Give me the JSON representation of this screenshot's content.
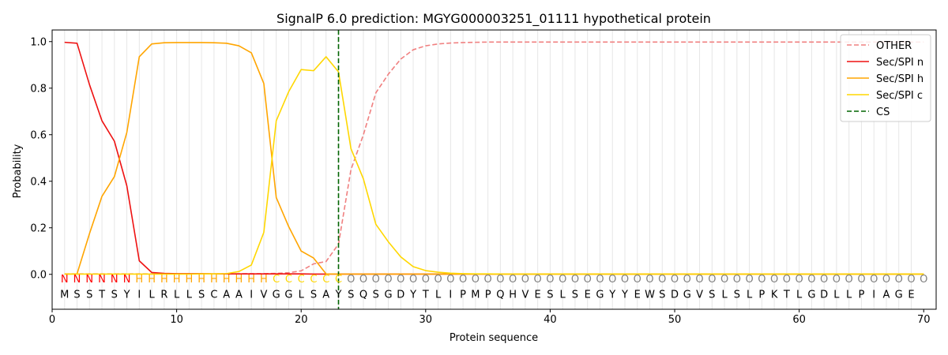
{
  "chart_data": {
    "type": "line",
    "title": "SignalP 6.0 prediction: MGYG000003251_01111 hypothetical protein",
    "xlabel": "Protein sequence",
    "ylabel": "Probability",
    "xlim": [
      0,
      71
    ],
    "ylim": [
      -0.15,
      1.05
    ],
    "x_ticks": [
      0,
      10,
      20,
      30,
      40,
      50,
      60,
      70
    ],
    "y_ticks": [
      0.0,
      0.2,
      0.4,
      0.6,
      0.8,
      1.0
    ],
    "x_tick_labels": [
      "0",
      "10",
      "20",
      "30",
      "40",
      "50",
      "60",
      "70"
    ],
    "y_tick_labels": [
      "0.0",
      "0.2",
      "0.4",
      "0.6",
      "0.8",
      "1.0"
    ],
    "grid": "vertical lines at each residue",
    "legend_position": "top-right",
    "sequence": [
      "M",
      "S",
      "S",
      "T",
      "S",
      "Y",
      "I",
      "L",
      "R",
      "L",
      "L",
      "S",
      "C",
      "A",
      "A",
      "I",
      "V",
      "G",
      "G",
      "L",
      "S",
      "A",
      "Y",
      "S",
      "Q",
      "S",
      "G",
      "D",
      "Y",
      "T",
      "L",
      "I",
      "P",
      "M",
      "P",
      "Q",
      "H",
      "V",
      "E",
      "S",
      "L",
      "S",
      "E",
      "G",
      "Y",
      "Y",
      "E",
      "W",
      "S",
      "D",
      "G",
      "V",
      "S",
      "L",
      "S",
      "L",
      "P",
      "K",
      "T",
      "L",
      "G",
      "D",
      "L",
      "L",
      "P",
      "I",
      "A",
      "G",
      "E"
    ],
    "labels": [
      "N",
      "N",
      "N",
      "N",
      "N",
      "N",
      "H",
      "H",
      "H",
      "H",
      "H",
      "H",
      "H",
      "H",
      "H",
      "H",
      "H",
      "C",
      "C",
      "C",
      "C",
      "C",
      "C",
      "O",
      "O",
      "O",
      "O",
      "O",
      "O",
      "O",
      "O",
      "O",
      "O",
      "O",
      "O",
      "O",
      "O",
      "O",
      "O",
      "O",
      "O",
      "O",
      "O",
      "O",
      "O",
      "O",
      "O",
      "O",
      "O",
      "O",
      "O",
      "O",
      "O",
      "O",
      "O",
      "O",
      "O",
      "O",
      "O",
      "O",
      "O",
      "O",
      "O",
      "O",
      "O",
      "O",
      "O",
      "O",
      "O",
      "O"
    ],
    "label_colors": {
      "N": "#ff0000",
      "H": "#ffa500",
      "C": "#ffd700",
      "O": "#808080"
    },
    "cleavage_site": 23,
    "series": [
      {
        "name": "OTHER",
        "color": "#f08080",
        "dash": "dashed",
        "values": [
          0.002,
          0.002,
          0.002,
          0.002,
          0.002,
          0.002,
          0.002,
          0.002,
          0.002,
          0.002,
          0.002,
          0.002,
          0.002,
          0.002,
          0.002,
          0.003,
          0.003,
          0.004,
          0.007,
          0.015,
          0.045,
          0.055,
          0.13,
          0.45,
          0.6,
          0.78,
          0.86,
          0.925,
          0.965,
          0.982,
          0.99,
          0.994,
          0.996,
          0.997,
          0.998,
          0.998,
          0.998,
          0.998,
          0.998,
          0.998,
          0.998,
          0.998,
          0.998,
          0.998,
          0.998,
          0.998,
          0.998,
          0.998,
          0.998,
          0.998,
          0.998,
          0.998,
          0.998,
          0.998,
          0.998,
          0.998,
          0.998,
          0.998,
          0.998,
          0.998,
          0.998,
          0.998,
          0.998,
          0.998,
          0.998,
          0.998,
          0.998,
          0.998,
          0.998,
          0.998
        ]
      },
      {
        "name": "Sec/SPI n",
        "color": "#ee1111",
        "dash": "solid",
        "values": [
          0.997,
          0.993,
          0.815,
          0.66,
          0.572,
          0.38,
          0.058,
          0.008,
          0.004,
          0.003,
          0.003,
          0.003,
          0.002,
          0.002,
          0.002,
          0.002,
          0.002,
          0.002,
          0.002,
          0.002,
          0.001,
          0.001,
          0.001,
          0.001,
          0.001,
          0.001,
          0.001,
          0.001,
          0.001,
          0.001,
          0.001,
          0.001,
          0.001,
          0.001,
          0.001,
          0.001,
          0.001,
          0.001,
          0.001,
          0.001,
          0.001,
          0.001,
          0.001,
          0.001,
          0.001,
          0.001,
          0.001,
          0.001,
          0.001,
          0.001,
          0.001,
          0.001,
          0.001,
          0.001,
          0.001,
          0.001,
          0.001,
          0.001,
          0.001,
          0.001,
          0.001,
          0.001,
          0.001,
          0.001,
          0.001,
          0.001,
          0.001,
          0.001,
          0.001,
          0.001
        ]
      },
      {
        "name": "Sec/SPI h",
        "color": "#ffa500",
        "dash": "solid",
        "values": [
          0.001,
          0.002,
          0.175,
          0.335,
          0.42,
          0.61,
          0.935,
          0.99,
          0.995,
          0.996,
          0.996,
          0.996,
          0.995,
          0.993,
          0.982,
          0.952,
          0.82,
          0.33,
          0.205,
          0.1,
          0.07,
          0.002,
          0.001,
          0.001,
          0.001,
          0.001,
          0.001,
          0.001,
          0.001,
          0.001,
          0.001,
          0.001,
          0.001,
          0.001,
          0.001,
          0.001,
          0.001,
          0.001,
          0.001,
          0.001,
          0.001,
          0.001,
          0.001,
          0.001,
          0.001,
          0.001,
          0.001,
          0.001,
          0.001,
          0.001,
          0.001,
          0.001,
          0.001,
          0.001,
          0.001,
          0.001,
          0.001,
          0.001,
          0.001,
          0.001,
          0.001,
          0.001,
          0.001,
          0.001,
          0.001,
          0.001,
          0.001,
          0.001,
          0.001,
          0.001
        ]
      },
      {
        "name": "Sec/SPI c",
        "color": "#ffd700",
        "dash": "solid",
        "values": [
          0.001,
          0.001,
          0.001,
          0.001,
          0.001,
          0.001,
          0.001,
          0.001,
          0.001,
          0.001,
          0.001,
          0.002,
          0.002,
          0.003,
          0.012,
          0.04,
          0.18,
          0.66,
          0.785,
          0.88,
          0.875,
          0.935,
          0.87,
          0.54,
          0.41,
          0.215,
          0.14,
          0.075,
          0.033,
          0.016,
          0.009,
          0.005,
          0.003,
          0.002,
          0.002,
          0.001,
          0.001,
          0.001,
          0.001,
          0.001,
          0.001,
          0.001,
          0.001,
          0.001,
          0.001,
          0.001,
          0.001,
          0.001,
          0.001,
          0.001,
          0.001,
          0.001,
          0.001,
          0.001,
          0.001,
          0.001,
          0.001,
          0.001,
          0.001,
          0.001,
          0.001,
          0.001,
          0.001,
          0.001,
          0.001,
          0.001,
          0.001,
          0.001,
          0.001,
          0.001
        ]
      }
    ],
    "cs_series": {
      "name": "CS",
      "color": "#006400",
      "dash": "dashed"
    }
  }
}
